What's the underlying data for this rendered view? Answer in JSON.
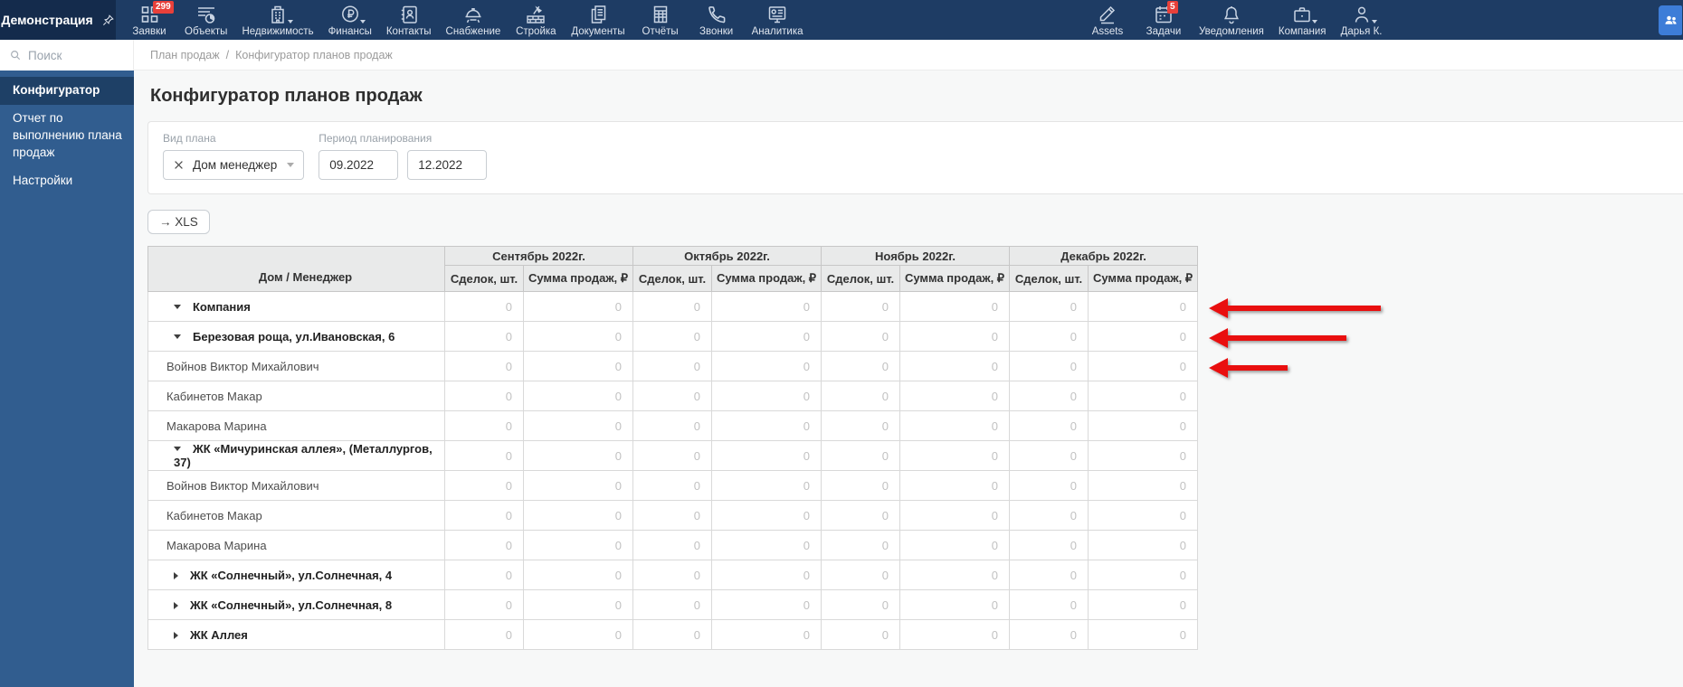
{
  "topbar": {
    "brand": "Демонстрация",
    "nav": [
      {
        "id": "requests",
        "icon": "grid",
        "label": "Заявки",
        "badge": "299"
      },
      {
        "id": "objects",
        "icon": "objects",
        "label": "Объекты"
      },
      {
        "id": "realty",
        "icon": "building",
        "label": "Недвижимость",
        "caret": true
      },
      {
        "id": "finance",
        "icon": "ruble",
        "label": "Финансы",
        "caret": true
      },
      {
        "id": "contacts",
        "icon": "contacts",
        "label": "Контакты"
      },
      {
        "id": "supply",
        "icon": "supply",
        "label": "Снабжение"
      },
      {
        "id": "construction",
        "icon": "construction",
        "label": "Стройка"
      },
      {
        "id": "documents",
        "icon": "docs",
        "label": "Документы"
      },
      {
        "id": "reports",
        "icon": "report",
        "label": "Отчёты"
      },
      {
        "id": "calls",
        "icon": "phone",
        "label": "Звонки"
      },
      {
        "id": "analytics",
        "icon": "analytics",
        "label": "Аналитика"
      }
    ],
    "right": [
      {
        "id": "assets",
        "icon": "pencil",
        "label": "Assets"
      },
      {
        "id": "tasks",
        "icon": "calendar",
        "label": "Задачи",
        "badge": "5"
      },
      {
        "id": "notifications",
        "icon": "bell",
        "label": "Уведомления"
      },
      {
        "id": "company",
        "icon": "briefcase",
        "label": "Компания",
        "caret": true
      },
      {
        "id": "user",
        "icon": "user",
        "label": "Дарья К.",
        "caret": true
      }
    ]
  },
  "sidebar": {
    "search_placeholder": "Поиск",
    "items": [
      {
        "id": "configurator",
        "label": "Конфигуратор",
        "active": true
      },
      {
        "id": "sales-plan-report",
        "label": "Отчет по выполнению плана продаж",
        "active": false
      },
      {
        "id": "settings",
        "label": "Настройки",
        "active": false
      }
    ]
  },
  "breadcrumb": [
    "План продаж",
    "Конфигуратор планов продаж"
  ],
  "page": {
    "title": "Конфигуратор планов продаж"
  },
  "filters": {
    "plan_type": {
      "label": "Вид плана",
      "value": "Дом менеджер"
    },
    "period": {
      "label": "Период планирования",
      "from": "09.2022",
      "to": "12.2022"
    }
  },
  "export_button": "→ XLS",
  "table": {
    "name_header": "Дом / Менеджер",
    "months": [
      "Сентябрь 2022г.",
      "Октябрь 2022г.",
      "Ноябрь 2022г.",
      "Декабрь 2022г."
    ],
    "subheaders": [
      "Сделок, шт.",
      "Сумма продаж, ₽"
    ],
    "rows": [
      {
        "name": "Компания",
        "type": "group",
        "expanded": true,
        "values": [
          0,
          0,
          0,
          0,
          0,
          0,
          0,
          0
        ]
      },
      {
        "name": "Березовая роща, ул.Ивановская, 6",
        "type": "group",
        "expanded": true,
        "values": [
          0,
          0,
          0,
          0,
          0,
          0,
          0,
          0
        ]
      },
      {
        "name": "Войнов Виктор Михайлович",
        "type": "manager",
        "values": [
          0,
          0,
          0,
          0,
          0,
          0,
          0,
          0
        ]
      },
      {
        "name": "Кабинетов Макар",
        "type": "manager",
        "values": [
          0,
          0,
          0,
          0,
          0,
          0,
          0,
          0
        ]
      },
      {
        "name": "Макарова Марина",
        "type": "manager",
        "values": [
          0,
          0,
          0,
          0,
          0,
          0,
          0,
          0
        ]
      },
      {
        "name": "ЖК «Мичуринская аллея», (Металлургов, 37)",
        "type": "group",
        "expanded": true,
        "values": [
          0,
          0,
          0,
          0,
          0,
          0,
          0,
          0
        ]
      },
      {
        "name": "Войнов Виктор Михайлович",
        "type": "manager",
        "values": [
          0,
          0,
          0,
          0,
          0,
          0,
          0,
          0
        ]
      },
      {
        "name": "Кабинетов Макар",
        "type": "manager",
        "values": [
          0,
          0,
          0,
          0,
          0,
          0,
          0,
          0
        ]
      },
      {
        "name": "Макарова Марина",
        "type": "manager",
        "values": [
          0,
          0,
          0,
          0,
          0,
          0,
          0,
          0
        ]
      },
      {
        "name": "ЖК «Солнечный», ул.Солнечная, 4",
        "type": "group",
        "expanded": false,
        "values": [
          0,
          0,
          0,
          0,
          0,
          0,
          0,
          0
        ]
      },
      {
        "name": "ЖК «Солнечный», ул.Солнечная, 8",
        "type": "group",
        "expanded": false,
        "values": [
          0,
          0,
          0,
          0,
          0,
          0,
          0,
          0
        ]
      },
      {
        "name": "ЖК Аллея",
        "type": "group",
        "expanded": false,
        "values": [
          0,
          0,
          0,
          0,
          0,
          0,
          0,
          0
        ]
      }
    ]
  },
  "annotations": {
    "arrows": [
      {
        "points_to_row": 0,
        "length": 190
      },
      {
        "points_to_row": 1,
        "length": 152
      },
      {
        "points_to_row": 2,
        "length": 87
      }
    ]
  },
  "colors": {
    "topbar_bg": "#1e3c64",
    "brand_bg": "#142b4c",
    "sidebar_bg": "#315d8f",
    "sidebar_active_bg": "#1e4066",
    "badge_red": "#e8403a",
    "accent_button_blue": "#3d7dd8",
    "arrow_red": "#e90f0f",
    "table_header_bg": "#e9eaea"
  }
}
